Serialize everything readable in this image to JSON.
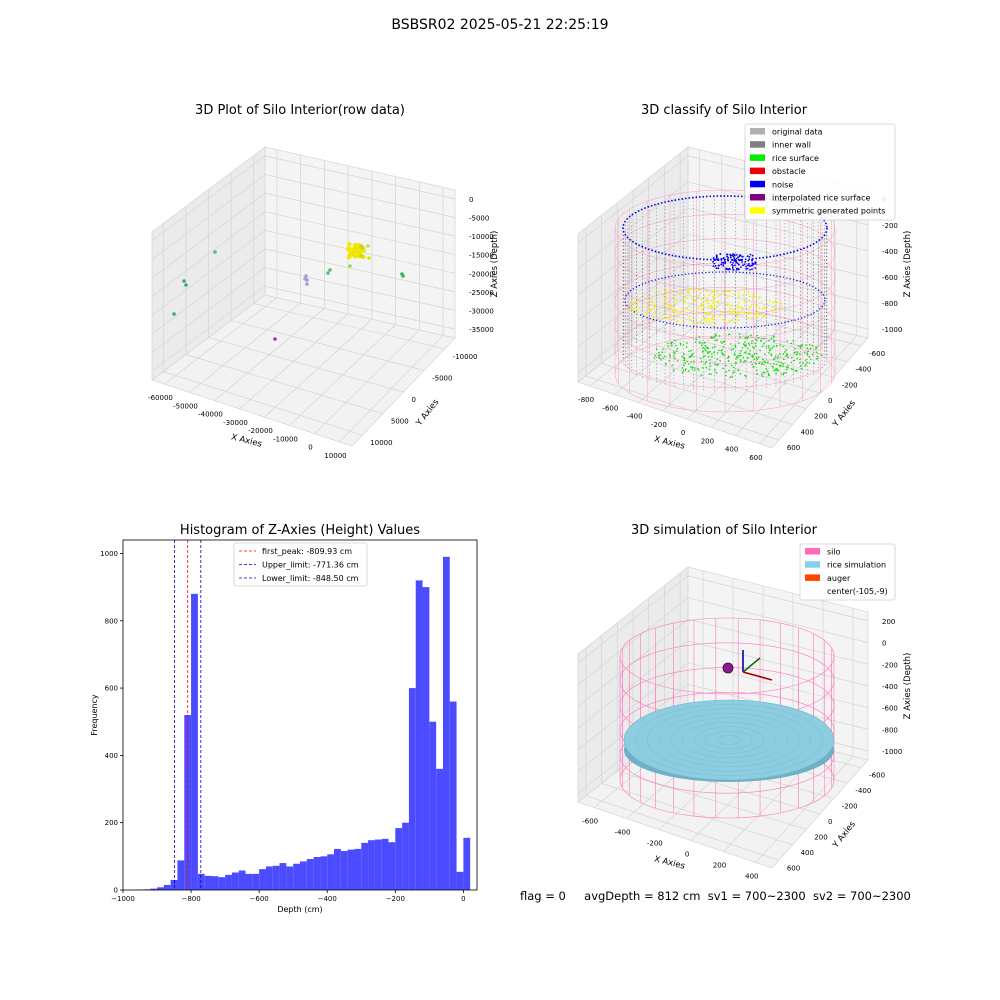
{
  "window_title": "BSBSR02 2025-05-21 22:25:19",
  "panels": {
    "raw": {
      "title": "3D Plot of Silo Interior(row data)",
      "xlabel": "X Axies",
      "ylabel": "Y Axies",
      "zlabel": "Z Axies (Depth)",
      "x_ticks": [
        "-60000",
        "-50000",
        "-40000",
        "-30000",
        "-20000",
        "-10000",
        "0",
        "10000"
      ],
      "y_ticks": [
        "-10000",
        "-5000",
        "0",
        "5000",
        "10000"
      ],
      "z_ticks": [
        "0",
        "-5000",
        "-10000",
        "-15000",
        "-20000",
        "-25000",
        "-30000",
        "-35000"
      ]
    },
    "classify": {
      "title": "3D classify of Silo Interior",
      "xlabel": "X Axies",
      "ylabel": "Y Axies",
      "zlabel": "Z Axies (Depth)",
      "x_ticks": [
        "-800",
        "-600",
        "-400",
        "-200",
        "0",
        "200",
        "400",
        "600"
      ],
      "y_ticks": [
        "-600",
        "-400",
        "-200",
        "0",
        "200",
        "400",
        "600"
      ],
      "z_ticks": [
        "0",
        "-200",
        "-400",
        "-600",
        "-800",
        "-1000"
      ],
      "legend": [
        {
          "label": "original data",
          "color": "#b0b0b0"
        },
        {
          "label": "inner wall",
          "color": "#808080"
        },
        {
          "label": "rice surface",
          "color": "#00ee00"
        },
        {
          "label": "obstacle",
          "color": "#ee0000"
        },
        {
          "label": "noise",
          "color": "#0000ee"
        },
        {
          "label": "interpolated rice surface",
          "color": "#800080"
        },
        {
          "label": "symmetric generated points",
          "color": "#ffff00"
        }
      ]
    },
    "simulation": {
      "title": "3D simulation of Silo Interior",
      "xlabel": "X Axies",
      "ylabel": "Y Axies",
      "zlabel": "Z Axies (Depth)",
      "x_ticks": [
        "-600",
        "-400",
        "-200",
        "0",
        "200",
        "400"
      ],
      "y_ticks": [
        "-600",
        "-400",
        "-200",
        "0",
        "200",
        "400",
        "600"
      ],
      "z_ticks": [
        "200",
        "0",
        "-200",
        "-400",
        "-600",
        "-800",
        "-1000"
      ],
      "legend": [
        {
          "label": "silo",
          "color": "#ff69b4"
        },
        {
          "label": "rice simulation",
          "color": "#87ceeb"
        },
        {
          "label": "auger",
          "color": "#ff4500"
        },
        {
          "label": "center(-105,-9)",
          "color": ""
        }
      ]
    }
  },
  "status": {
    "flag": "flag = 0",
    "avg": "avgDepth = 812 cm",
    "sv1": "sv1 = 700~2300",
    "sv2": "sv2 = 700~2300"
  },
  "chart_data": [
    {
      "type": "scatter",
      "title": "3D Plot of Silo Interior(row data)",
      "xlabel": "X Axies",
      "ylabel": "Y Axies",
      "zlabel": "Z Axies (Depth)",
      "xlim": [
        -65000,
        12000
      ],
      "ylim": [
        -10000,
        12000
      ],
      "zlim": [
        -37000,
        0
      ],
      "points_description": "scattered clusters of coloured points"
    },
    {
      "type": "scatter",
      "title": "3D classify of Silo Interior",
      "xlabel": "X Axies",
      "ylabel": "Y Axies",
      "zlabel": "Z Axies (Depth)",
      "xlim": [
        -800,
        600
      ],
      "ylim": [
        -600,
        600
      ],
      "zlim": [
        -1100,
        0
      ],
      "series": [
        {
          "name": "original data"
        },
        {
          "name": "inner wall"
        },
        {
          "name": "rice surface"
        },
        {
          "name": "obstacle"
        },
        {
          "name": "noise"
        },
        {
          "name": "interpolated rice surface"
        },
        {
          "name": "symmetric generated points"
        }
      ]
    },
    {
      "type": "bar",
      "title": "Histogram of Z-Axies (Height) Values",
      "xlabel": "Depth (cm)",
      "ylabel": "Frequency",
      "xlim": [
        -1000,
        40
      ],
      "ylim": [
        0,
        1040
      ],
      "x_ticks": [
        -1000,
        -800,
        -600,
        -400,
        -200,
        0
      ],
      "y_ticks": [
        0,
        200,
        400,
        600,
        800,
        1000
      ],
      "bin_width": 20,
      "bin_edges_start": -1000,
      "values": [
        0,
        0,
        1,
        2,
        4,
        8,
        15,
        30,
        88,
        520,
        880,
        48,
        42,
        41,
        38,
        45,
        52,
        58,
        48,
        48,
        62,
        70,
        72,
        80,
        70,
        78,
        85,
        92,
        98,
        100,
        106,
        122,
        116,
        120,
        122,
        140,
        148,
        150,
        152,
        142,
        184,
        200,
        600,
        920,
        900,
        500,
        360,
        990,
        560,
        54,
        155
      ],
      "lines": [
        {
          "name": "first_peak",
          "label": "first_peak: -809.93 cm",
          "x": -809.93,
          "color": "#ff0000"
        },
        {
          "name": "Upper_limit",
          "label": "Upper_limit: -771.36 cm",
          "x": -771.36,
          "color": "#0000bb"
        },
        {
          "name": "Lower_limit",
          "label": "Lower_limit: -848.50 cm",
          "x": -848.5,
          "color": "#0000bb"
        }
      ],
      "bar_color": "#4b4bff"
    },
    {
      "type": "scatter",
      "title": "3D simulation of Silo Interior",
      "xlabel": "X Axies",
      "ylabel": "Y Axies",
      "zlabel": "Z Axies (Depth)",
      "xlim": [
        -750,
        500
      ],
      "ylim": [
        -700,
        700
      ],
      "zlim": [
        -1100,
        250
      ],
      "series": [
        {
          "name": "silo"
        },
        {
          "name": "rice simulation"
        },
        {
          "name": "auger"
        }
      ],
      "center": [
        -105,
        -9
      ],
      "avg_depth_cm": 812
    }
  ]
}
